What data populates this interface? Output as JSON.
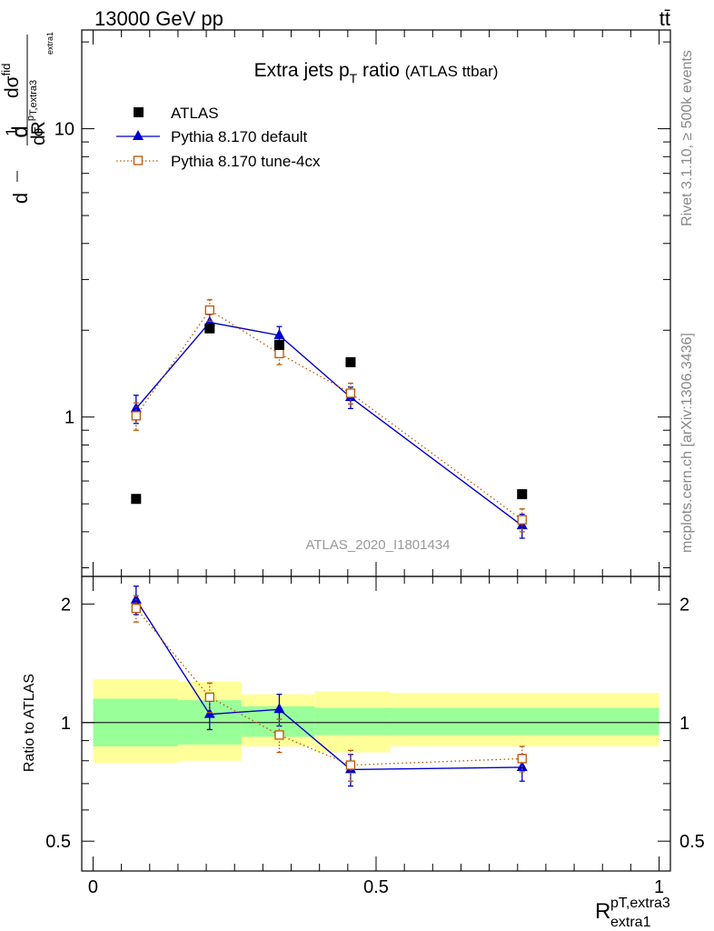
{
  "header": {
    "energy_label": "13000 GeV pp",
    "process_label": "tt̄"
  },
  "side": {
    "rivet_label": "Rivet 3.1.10, ≥ 500k events",
    "site_label": "mcplots.cern.ch [arXiv:1306.3436]"
  },
  "chart_data": [
    {
      "type": "scatter",
      "panel": "main",
      "title": "Extra jets p",
      "title_sub": "T",
      "title_tail": " ratio",
      "title_small": "(ATLAS ttbar)",
      "ylabel": "d1/σdσ/dR",
      "ylabel_display": {
        "frac1_num": "1",
        "frac1_den": "σ",
        "d": "d",
        "frac2_num_d": "d",
        "frac2_num_sigma": "σ",
        "frac2_num_sup": "fid",
        "frac2_den_d": "d",
        "frac2_den_R": "R",
        "frac2_den_sub": "p",
        "frac2_den_sub2": "T,extra3",
        "frac2_den_sub3": "extra1"
      },
      "yscale": "log",
      "ylim": [
        0.28,
        22
      ],
      "xlim": [
        -0.02,
        1.02
      ],
      "yticks": [
        {
          "value": 1,
          "label": "1"
        },
        {
          "value": 10,
          "label": "10"
        }
      ],
      "watermark": "ATLAS_2020_I1801434",
      "legend_position": "top-left",
      "series": [
        {
          "name": "ATLAS",
          "style": "filled-square",
          "color": "#000000",
          "x": [
            0.076,
            0.206,
            0.329,
            0.455,
            0.758
          ],
          "y": [
            0.52,
            2.03,
            1.78,
            1.55,
            0.54
          ]
        },
        {
          "name": "Pythia 8.170 default",
          "style": "triangle-line",
          "color": "#0000cc",
          "x": [
            0.076,
            0.206,
            0.329,
            0.455,
            0.758
          ],
          "y": [
            1.07,
            2.13,
            1.92,
            1.17,
            0.42
          ],
          "err": [
            0.12,
            0.14,
            0.14,
            0.1,
            0.04
          ]
        },
        {
          "name": "Pythia 8.170 tune-4cx",
          "style": "open-square-dotted",
          "color": "#bb5500",
          "x": [
            0.076,
            0.206,
            0.329,
            0.455,
            0.758
          ],
          "y": [
            1.01,
            2.35,
            1.66,
            1.21,
            0.44
          ],
          "err": [
            0.11,
            0.2,
            0.14,
            0.1,
            0.04
          ]
        }
      ]
    },
    {
      "type": "scatter",
      "panel": "ratio",
      "ylabel": "Ratio to ATLAS",
      "xlabel": "R",
      "xlabel_sup": "pT,extra3",
      "xlabel_sub": "extra1",
      "yscale": "log",
      "ylim": [
        0.42,
        2.35
      ],
      "xlim": [
        -0.02,
        1.02
      ],
      "xticks": [
        {
          "value": 0,
          "label": "0"
        },
        {
          "value": 0.5,
          "label": "0.5"
        },
        {
          "value": 1,
          "label": "1"
        }
      ],
      "yticks": [
        {
          "value": 0.5,
          "label": "0.5"
        },
        {
          "value": 1,
          "label": "1"
        },
        {
          "value": 2,
          "label": "2"
        }
      ],
      "bands": [
        {
          "x0": 0.0,
          "x1": 0.15,
          "inner": [
            0.87,
            1.15
          ],
          "outer": [
            0.79,
            1.29
          ]
        },
        {
          "x0": 0.15,
          "x1": 0.262,
          "inner": [
            0.88,
            1.14
          ],
          "outer": [
            0.8,
            1.27
          ]
        },
        {
          "x0": 0.262,
          "x1": 0.392,
          "inner": [
            0.92,
            1.1
          ],
          "outer": [
            0.87,
            1.18
          ]
        },
        {
          "x0": 0.392,
          "x1": 0.525,
          "inner": [
            0.93,
            1.09
          ],
          "outer": [
            0.84,
            1.2
          ]
        },
        {
          "x0": 0.525,
          "x1": 1.0,
          "inner": [
            0.93,
            1.09
          ],
          "outer": [
            0.87,
            1.19
          ]
        }
      ],
      "series": [
        {
          "name": "Pythia 8.170 default",
          "style": "triangle-line",
          "color": "#0000cc",
          "x": [
            0.076,
            0.206,
            0.329,
            0.455,
            0.758
          ],
          "y": [
            2.05,
            1.05,
            1.08,
            0.76,
            0.77
          ],
          "err": [
            0.17,
            0.09,
            0.1,
            0.07,
            0.06
          ]
        },
        {
          "name": "Pythia 8.170 tune-4cx",
          "style": "open-square-dotted",
          "color": "#bb5500",
          "x": [
            0.076,
            0.206,
            0.329,
            0.455,
            0.758
          ],
          "y": [
            1.95,
            1.16,
            0.93,
            0.78,
            0.81
          ],
          "err": [
            0.15,
            0.1,
            0.09,
            0.07,
            0.06
          ]
        }
      ]
    }
  ]
}
